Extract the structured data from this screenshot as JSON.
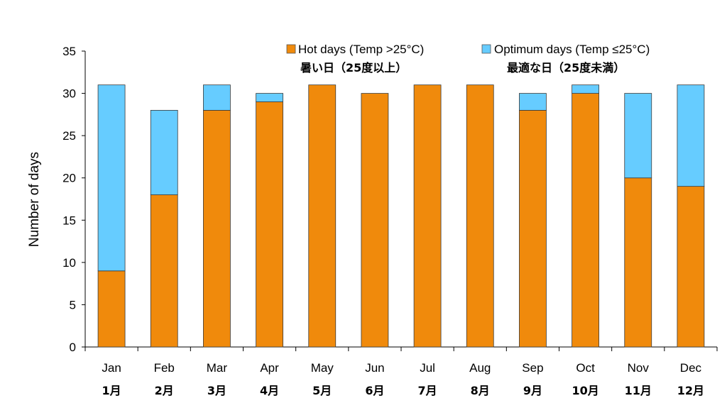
{
  "chart_data": {
    "type": "bar",
    "stacked": true,
    "title": "",
    "xlabel": "",
    "ylabel": "Number of days",
    "ylim": [
      0,
      35
    ],
    "yticks": [
      0,
      5,
      10,
      15,
      20,
      25,
      30,
      35
    ],
    "categories": [
      "Jan",
      "Feb",
      "Mar",
      "Apr",
      "May",
      "Jun",
      "Jul",
      "Aug",
      "Sep",
      "Oct",
      "Nov",
      "Dec"
    ],
    "categories_jp": [
      "1月",
      "2月",
      "3月",
      "4月",
      "5月",
      "6月",
      "7月",
      "8月",
      "9月",
      "10月",
      "11月",
      "12月"
    ],
    "series": [
      {
        "name": "Hot days (Temp >25°C)",
        "name_jp": "暑い日（25度以上）",
        "color": "#F08A0C",
        "values": [
          9,
          18,
          28,
          29,
          31,
          30,
          31,
          31,
          28,
          30,
          20,
          19
        ]
      },
      {
        "name": "Optimum days (Temp ≤25°C)",
        "name_jp": "最適な日（25度未満）",
        "color": "#66CCFF",
        "values": [
          22,
          10,
          3,
          1,
          0,
          0,
          0,
          0,
          2,
          1,
          10,
          12
        ]
      }
    ],
    "legend_position": "top"
  }
}
